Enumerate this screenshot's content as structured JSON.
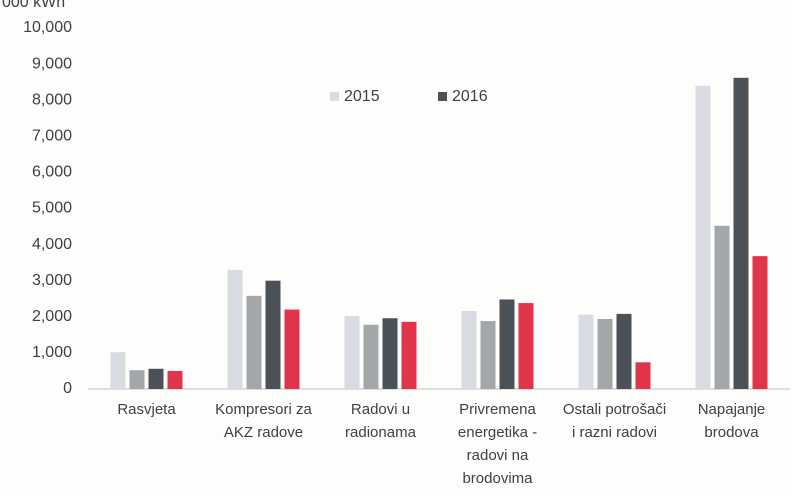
{
  "chart_data": {
    "type": "bar",
    "y_label": "000 kWh",
    "categories": [
      "Rasvjeta",
      "Kompresori za AKZ radove",
      "Radovi u radionama",
      "Privremena energetika - radovi na brodovima",
      "Ostali potrošači i razni radovi",
      "Napajanje brodova"
    ],
    "series": [
      {
        "name": "2015",
        "color": "#d8dce2",
        "values": [
          1020,
          3300,
          2020,
          2160,
          2060,
          8400
        ]
      },
      {
        "color": "#a3a7aa",
        "values": [
          520,
          2580,
          1780,
          1880,
          1940,
          4520
        ]
      },
      {
        "name": "2016",
        "color": "#4a5157",
        "values": [
          560,
          3000,
          1960,
          2480,
          2080,
          8620
        ]
      },
      {
        "color": "#e0344a",
        "values": [
          500,
          2200,
          1860,
          2380,
          740,
          3680
        ]
      }
    ],
    "ylim": [
      0,
      10000
    ],
    "yticks": [
      {
        "value": 0,
        "label": "0"
      },
      {
        "value": 1000,
        "label": "1,000"
      },
      {
        "value": 2000,
        "label": "2,000"
      },
      {
        "value": 3000,
        "label": "3,000"
      },
      {
        "value": 4000,
        "label": "4,000"
      },
      {
        "value": 5000,
        "label": "5,000"
      },
      {
        "value": 6000,
        "label": "6,000"
      },
      {
        "value": 7000,
        "label": "7,000"
      },
      {
        "value": 8000,
        "label": "8,000"
      },
      {
        "value": 9000,
        "label": "9,000"
      },
      {
        "value": 10000,
        "label": "10,000"
      }
    ],
    "grid": false,
    "legend": "top"
  }
}
